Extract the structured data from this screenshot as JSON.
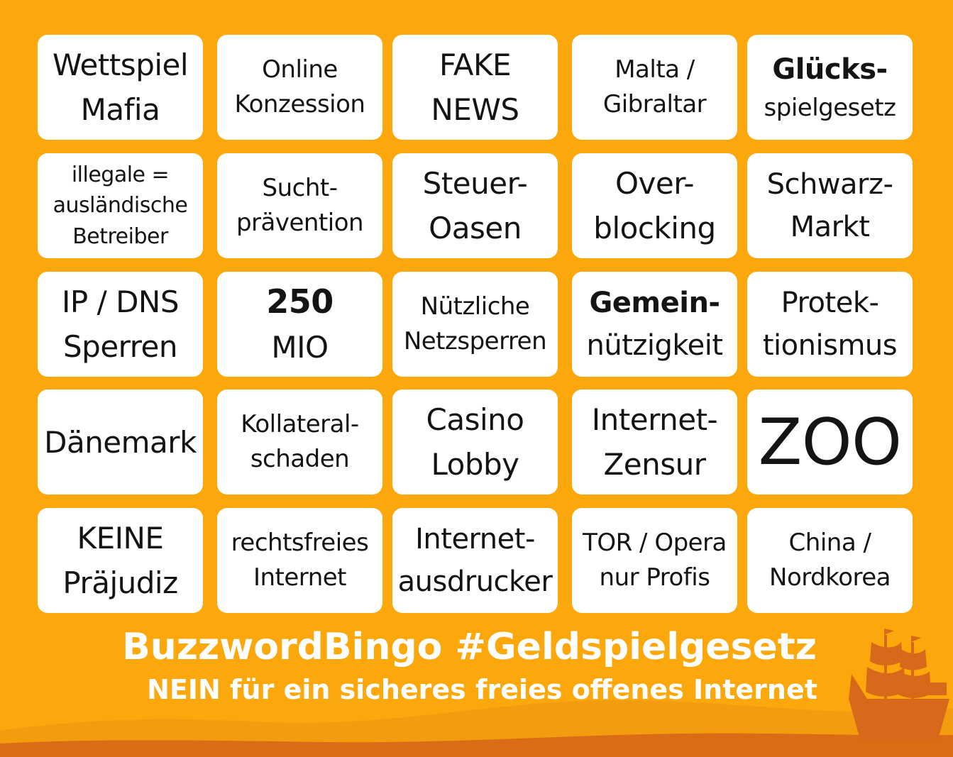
{
  "colors": {
    "background": "#fca80c",
    "wave_light": "#f39c0f",
    "wave_dark": "#db6c16",
    "ship": "#d8681a",
    "card": "#ffffff",
    "text": "#141414"
  },
  "ornament": "sailing-ship-silhouette",
  "bingo": [
    [
      {
        "lines": [
          "Wettspiel",
          "Mafia"
        ]
      },
      {
        "lines": [
          "Online",
          "Konzession"
        ]
      },
      {
        "lines": [
          "FAKE",
          "NEWS"
        ]
      },
      {
        "lines": [
          "Malta /",
          "Gibraltar"
        ]
      },
      {
        "lines": [
          "Glücks-",
          "spielgesetz"
        ]
      }
    ],
    [
      {
        "lines": [
          "illegale =",
          "ausländische",
          "Betreiber"
        ]
      },
      {
        "lines": [
          "Sucht-",
          "prävention"
        ]
      },
      {
        "lines": [
          "Steuer-",
          "Oasen"
        ]
      },
      {
        "lines": [
          "Over-",
          "blocking"
        ]
      },
      {
        "lines": [
          "Schwarz-",
          "Markt"
        ]
      }
    ],
    [
      {
        "lines": [
          "IP / DNS",
          "Sperren"
        ]
      },
      {
        "lines": [
          "250",
          "MIO"
        ]
      },
      {
        "lines": [
          "Nützliche",
          "Netzsperren"
        ]
      },
      {
        "lines": [
          "Gemein-",
          "nützigkeit"
        ]
      },
      {
        "lines": [
          "Protek-",
          "tionismus"
        ]
      }
    ],
    [
      {
        "lines": [
          "Dänemark"
        ]
      },
      {
        "lines": [
          "Kollateral-",
          "schaden"
        ]
      },
      {
        "lines": [
          "Casino",
          "Lobby"
        ]
      },
      {
        "lines": [
          "Internet-",
          "Zensur"
        ]
      },
      {
        "lines": [
          "ZOO"
        ]
      }
    ],
    [
      {
        "lines": [
          "KEINE",
          "Präjudiz"
        ]
      },
      {
        "lines": [
          "rechtsfreies",
          "Internet"
        ]
      },
      {
        "lines": [
          "Internet-",
          "ausdrucker"
        ]
      },
      {
        "lines": [
          "TOR / Opera",
          "nur Profis"
        ]
      },
      {
        "lines": [
          "China /",
          "Nordkorea"
        ]
      }
    ]
  ],
  "footer": {
    "title": "BuzzwordBingo #Geldspielgesetz",
    "subtitle": "NEIN  für ein sicheres freies offenes Internet"
  }
}
